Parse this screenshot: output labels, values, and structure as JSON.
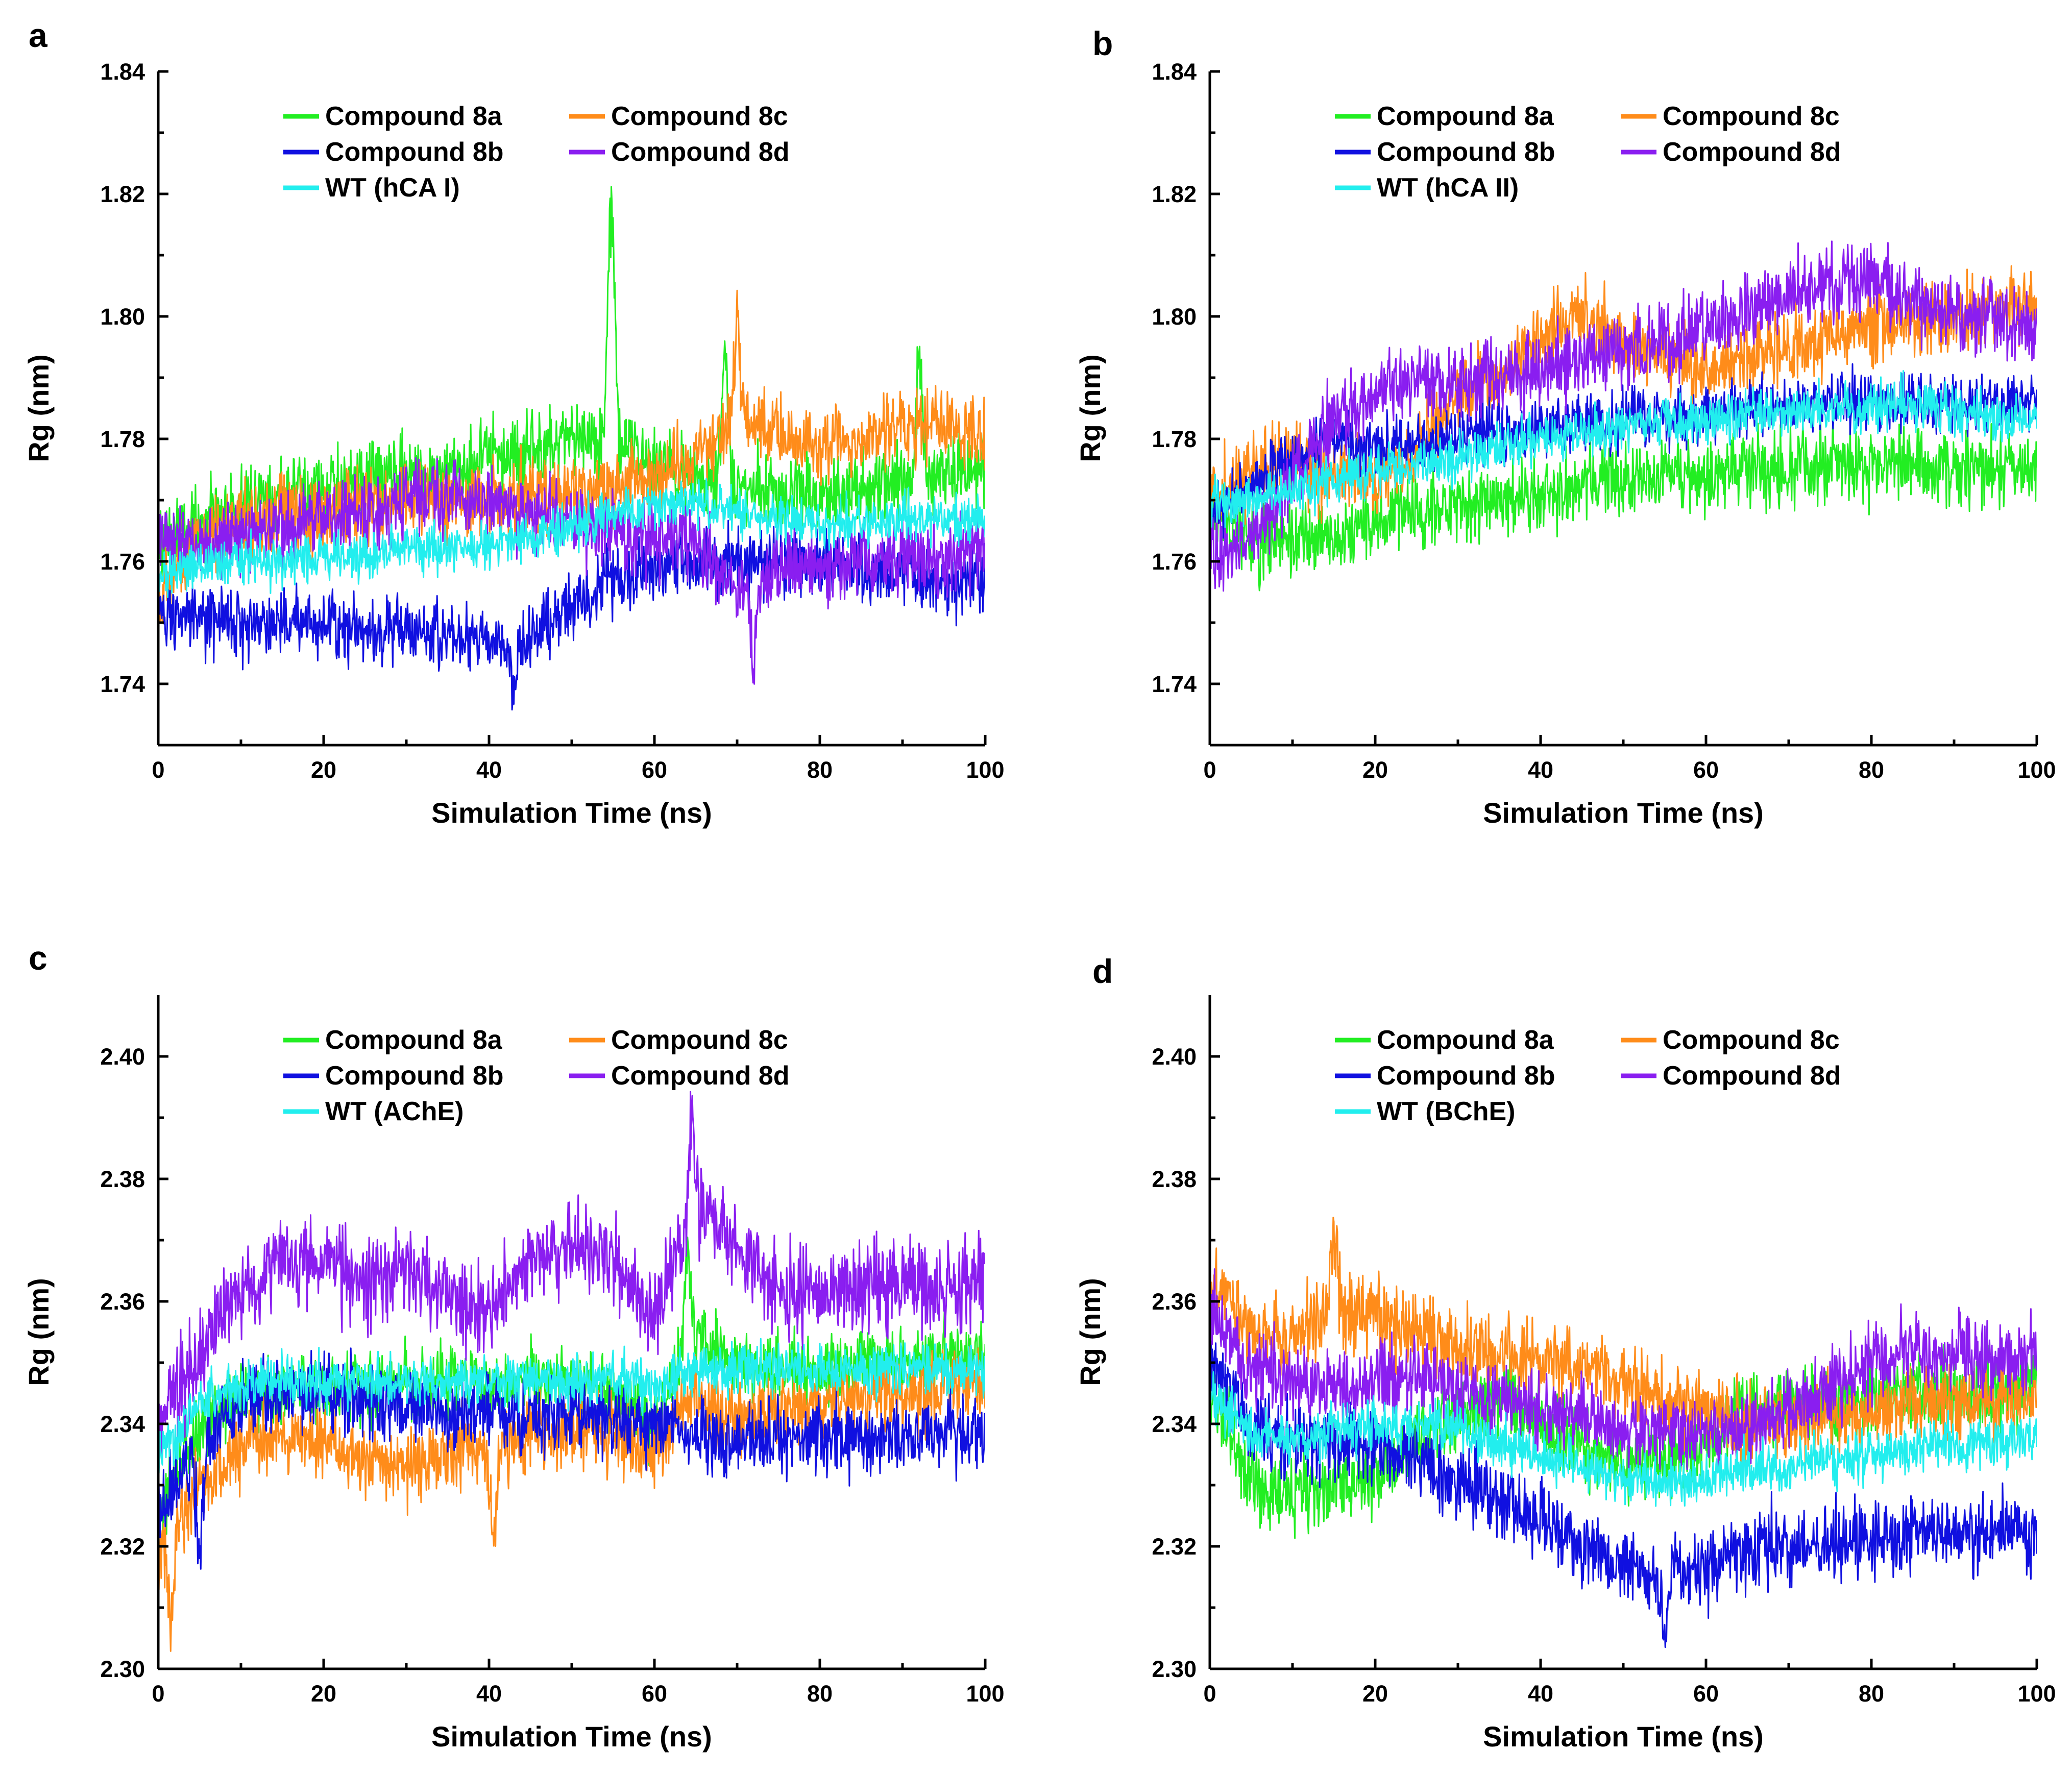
{
  "colors": {
    "compound_8a": "#22ee22",
    "compound_8b": "#1010e0",
    "compound_8c": "#ff8c1a",
    "compound_8d": "#8a1ef0",
    "wt": "#22eeee"
  },
  "chart_data": [
    {
      "type": "line",
      "panel": "a",
      "xlabel": "Simulation Time (ns)",
      "ylabel": "Rg (nm)",
      "xlim": [
        0,
        100
      ],
      "ylim": [
        1.73,
        1.84
      ],
      "xticks": [
        "0",
        "20",
        "40",
        "60",
        "80",
        "100"
      ],
      "yticks": [
        "1.74",
        "1.76",
        "1.78",
        "1.80",
        "1.82",
        "1.84"
      ],
      "legend_position": "top-center",
      "x": [
        0,
        5,
        10,
        15,
        20,
        25,
        30,
        35,
        40,
        45,
        50,
        55,
        60,
        65,
        70,
        75,
        80,
        85,
        90,
        95,
        100
      ],
      "series": [
        {
          "name": "Compound 8a",
          "color_key": "compound_8a",
          "noise": 0.0045,
          "values": [
            1.763,
            1.767,
            1.769,
            1.771,
            1.772,
            1.773,
            1.774,
            1.775,
            1.777,
            1.778,
            1.779,
            1.781,
            1.775,
            1.774,
            1.773,
            1.772,
            1.771,
            1.772,
            1.773,
            1.774,
            1.775
          ],
          "spikes": [
            [
              54.8,
              1.827
            ],
            [
              68.5,
              1.797
            ],
            [
              92,
              1.797
            ]
          ]
        },
        {
          "name": "Compound 8c",
          "color_key": "compound_8c",
          "noise": 0.0045,
          "values": [
            1.755,
            1.764,
            1.767,
            1.768,
            1.768,
            1.769,
            1.77,
            1.77,
            1.77,
            1.771,
            1.771,
            1.772,
            1.774,
            1.778,
            1.783,
            1.782,
            1.779,
            1.78,
            1.782,
            1.782,
            1.78
          ],
          "spikes": [
            [
              70,
              1.801
            ]
          ]
        },
        {
          "name": "Compound 8b",
          "color_key": "compound_8b",
          "noise": 0.004,
          "values": [
            1.752,
            1.75,
            1.75,
            1.75,
            1.75,
            1.749,
            1.749,
            1.748,
            1.747,
            1.747,
            1.753,
            1.757,
            1.759,
            1.76,
            1.76,
            1.76,
            1.76,
            1.759,
            1.758,
            1.757,
            1.757
          ],
          "spikes": [
            [
              43,
              1.738
            ]
          ]
        },
        {
          "name": "Compound 8d",
          "color_key": "compound_8d",
          "noise": 0.0045,
          "values": [
            1.764,
            1.763,
            1.764,
            1.766,
            1.767,
            1.768,
            1.77,
            1.771,
            1.77,
            1.768,
            1.766,
            1.764,
            1.764,
            1.763,
            1.756,
            1.758,
            1.759,
            1.76,
            1.76,
            1.761,
            1.762
          ],
          "spikes": [
            [
              72,
              1.743
            ]
          ]
        },
        {
          "name": "WT (hCA I)",
          "color_key": "wt",
          "noise": 0.0028,
          "values": [
            1.758,
            1.759,
            1.76,
            1.76,
            1.761,
            1.761,
            1.762,
            1.762,
            1.763,
            1.764,
            1.766,
            1.768,
            1.769,
            1.77,
            1.768,
            1.767,
            1.766,
            1.766,
            1.767,
            1.767,
            1.767
          ]
        }
      ]
    },
    {
      "type": "line",
      "panel": "b",
      "xlabel": "Simulation Time (ns)",
      "ylabel": "Rg (nm)",
      "xlim": [
        0,
        100
      ],
      "ylim": [
        1.73,
        1.84
      ],
      "xticks": [
        "0",
        "20",
        "40",
        "60",
        "80",
        "100"
      ],
      "yticks": [
        "1.74",
        "1.76",
        "1.78",
        "1.80",
        "1.82",
        "1.84"
      ],
      "legend_position": "top-center",
      "x": [
        0,
        5,
        10,
        15,
        20,
        25,
        30,
        35,
        40,
        45,
        50,
        55,
        60,
        65,
        70,
        75,
        80,
        85,
        90,
        95,
        100
      ],
      "series": [
        {
          "name": "Compound 8a",
          "color_key": "compound_8a",
          "noise": 0.0045,
          "values": [
            1.77,
            1.763,
            1.763,
            1.764,
            1.766,
            1.768,
            1.769,
            1.77,
            1.771,
            1.772,
            1.773,
            1.774,
            1.774,
            1.775,
            1.775,
            1.776,
            1.776,
            1.776,
            1.775,
            1.775,
            1.774
          ]
        },
        {
          "name": "Compound 8c",
          "color_key": "compound_8c",
          "noise": 0.0045,
          "values": [
            1.77,
            1.775,
            1.776,
            1.774,
            1.773,
            1.779,
            1.787,
            1.79,
            1.797,
            1.8,
            1.796,
            1.793,
            1.791,
            1.793,
            1.795,
            1.797,
            1.798,
            1.799,
            1.8,
            1.801,
            1.803
          ]
        },
        {
          "name": "Compound 8b",
          "color_key": "compound_8b",
          "noise": 0.0035,
          "values": [
            1.767,
            1.772,
            1.777,
            1.78,
            1.779,
            1.779,
            1.78,
            1.781,
            1.782,
            1.783,
            1.783,
            1.784,
            1.784,
            1.785,
            1.785,
            1.786,
            1.786,
            1.786,
            1.786,
            1.786,
            1.786
          ]
        },
        {
          "name": "Compound 8d",
          "color_key": "compound_8d",
          "noise": 0.0045,
          "values": [
            1.762,
            1.763,
            1.774,
            1.783,
            1.787,
            1.79,
            1.789,
            1.79,
            1.791,
            1.793,
            1.795,
            1.796,
            1.798,
            1.8,
            1.803,
            1.805,
            1.806,
            1.803,
            1.8,
            1.8,
            1.798
          ]
        },
        {
          "name": "WT (hCA II)",
          "color_key": "wt",
          "noise": 0.0028,
          "values": [
            1.77,
            1.77,
            1.772,
            1.773,
            1.775,
            1.776,
            1.777,
            1.779,
            1.78,
            1.781,
            1.782,
            1.783,
            1.783,
            1.784,
            1.784,
            1.785,
            1.785,
            1.786,
            1.785,
            1.784,
            1.783
          ]
        }
      ]
    },
    {
      "type": "line",
      "panel": "c",
      "xlabel": "Simulation Time (ns)",
      "ylabel": "Rg (nm)",
      "xlim": [
        0,
        100
      ],
      "ylim": [
        2.3,
        2.41
      ],
      "xticks": [
        "0",
        "20",
        "40",
        "60",
        "80",
        "100"
      ],
      "yticks": [
        "2.30",
        "2.32",
        "2.34",
        "2.36",
        "2.38",
        "2.40"
      ],
      "legend_position": "top-center",
      "x": [
        0,
        5,
        10,
        15,
        20,
        25,
        30,
        35,
        40,
        45,
        50,
        55,
        60,
        65,
        70,
        75,
        80,
        85,
        90,
        95,
        100
      ],
      "series": [
        {
          "name": "Compound 8a",
          "color_key": "compound_8a",
          "noise": 0.004,
          "values": [
            2.325,
            2.34,
            2.345,
            2.346,
            2.346,
            2.346,
            2.347,
            2.347,
            2.346,
            2.347,
            2.348,
            2.345,
            2.34,
            2.355,
            2.35,
            2.349,
            2.349,
            2.35,
            2.35,
            2.351,
            2.351
          ],
          "spikes": [
            [
              64,
              2.372
            ]
          ]
        },
        {
          "name": "Compound 8c",
          "color_key": "compound_8c",
          "noise": 0.0045,
          "values": [
            2.318,
            2.33,
            2.336,
            2.338,
            2.337,
            2.334,
            2.333,
            2.335,
            2.336,
            2.338,
            2.339,
            2.338,
            2.336,
            2.345,
            2.341,
            2.342,
            2.343,
            2.344,
            2.345,
            2.346,
            2.346
          ],
          "spikes": [
            [
              1.5,
              2.307
            ],
            [
              40.5,
              2.317
            ]
          ]
        },
        {
          "name": "Compound 8b",
          "color_key": "compound_8b",
          "noise": 0.0045,
          "values": [
            2.325,
            2.337,
            2.344,
            2.346,
            2.345,
            2.344,
            2.343,
            2.342,
            2.341,
            2.341,
            2.342,
            2.341,
            2.34,
            2.338,
            2.337,
            2.338,
            2.338,
            2.338,
            2.338,
            2.339,
            2.338
          ],
          "spikes": [
            [
              5,
              2.314
            ]
          ]
        },
        {
          "name": "Compound 8d",
          "color_key": "compound_8d",
          "noise": 0.0055,
          "values": [
            2.34,
            2.352,
            2.362,
            2.366,
            2.366,
            2.363,
            2.366,
            2.36,
            2.358,
            2.367,
            2.37,
            2.366,
            2.357,
            2.377,
            2.367,
            2.362,
            2.361,
            2.362,
            2.363,
            2.362,
            2.365
          ],
          "spikes": [
            [
              64.5,
              2.392
            ]
          ]
        },
        {
          "name": "WT (AChE)",
          "color_key": "wt",
          "noise": 0.003,
          "values": [
            2.335,
            2.343,
            2.346,
            2.347,
            2.347,
            2.347,
            2.347,
            2.347,
            2.347,
            2.347,
            2.347,
            2.347,
            2.346,
            2.349,
            2.349,
            2.349,
            2.349,
            2.349,
            2.349,
            2.349,
            2.349
          ]
        }
      ]
    },
    {
      "type": "line",
      "panel": "d",
      "xlabel": "Simulation Time (ns)",
      "ylabel": "Rg (nm)",
      "xlim": [
        0,
        100
      ],
      "ylim": [
        2.3,
        2.41
      ],
      "xticks": [
        "0",
        "20",
        "40",
        "60",
        "80",
        "100"
      ],
      "yticks": [
        "2.30",
        "2.32",
        "2.34",
        "2.36",
        "2.38",
        "2.40"
      ],
      "legend_position": "top-center",
      "x": [
        0,
        5,
        10,
        15,
        20,
        25,
        30,
        35,
        40,
        45,
        50,
        55,
        60,
        65,
        70,
        75,
        80,
        85,
        90,
        95,
        100
      ],
      "series": [
        {
          "name": "Compound 8a",
          "color_key": "compound_8a",
          "noise": 0.0045,
          "values": [
            2.345,
            2.33,
            2.329,
            2.33,
            2.331,
            2.337,
            2.342,
            2.345,
            2.34,
            2.336,
            2.333,
            2.334,
            2.337,
            2.342,
            2.344,
            2.343,
            2.345,
            2.345,
            2.345,
            2.345,
            2.347
          ]
        },
        {
          "name": "Compound 8c",
          "color_key": "compound_8c",
          "noise": 0.0045,
          "values": [
            2.363,
            2.356,
            2.354,
            2.359,
            2.358,
            2.355,
            2.352,
            2.351,
            2.35,
            2.349,
            2.346,
            2.344,
            2.342,
            2.34,
            2.341,
            2.341,
            2.342,
            2.343,
            2.344,
            2.344,
            2.344
          ],
          "spikes": [
            [
              15,
              2.373
            ]
          ]
        },
        {
          "name": "Compound 8b",
          "color_key": "compound_8b",
          "noise": 0.0045,
          "values": [
            2.35,
            2.34,
            2.338,
            2.337,
            2.336,
            2.334,
            2.331,
            2.328,
            2.324,
            2.32,
            2.317,
            2.315,
            2.317,
            2.32,
            2.32,
            2.32,
            2.321,
            2.322,
            2.322,
            2.323,
            2.322
          ],
          "spikes": [
            [
              55,
              2.303
            ]
          ]
        },
        {
          "name": "Compound 8d",
          "color_key": "compound_8d",
          "noise": 0.0045,
          "values": [
            2.358,
            2.349,
            2.347,
            2.346,
            2.347,
            2.348,
            2.346,
            2.344,
            2.342,
            2.341,
            2.339,
            2.338,
            2.339,
            2.34,
            2.342,
            2.346,
            2.35,
            2.352,
            2.352,
            2.35,
            2.352
          ]
        },
        {
          "name": "WT (BChE)",
          "color_key": "wt",
          "noise": 0.003,
          "values": [
            2.345,
            2.338,
            2.338,
            2.339,
            2.34,
            2.34,
            2.339,
            2.337,
            2.335,
            2.333,
            2.331,
            2.33,
            2.331,
            2.333,
            2.333,
            2.334,
            2.335,
            2.336,
            2.337,
            2.337,
            2.338
          ]
        }
      ]
    }
  ]
}
